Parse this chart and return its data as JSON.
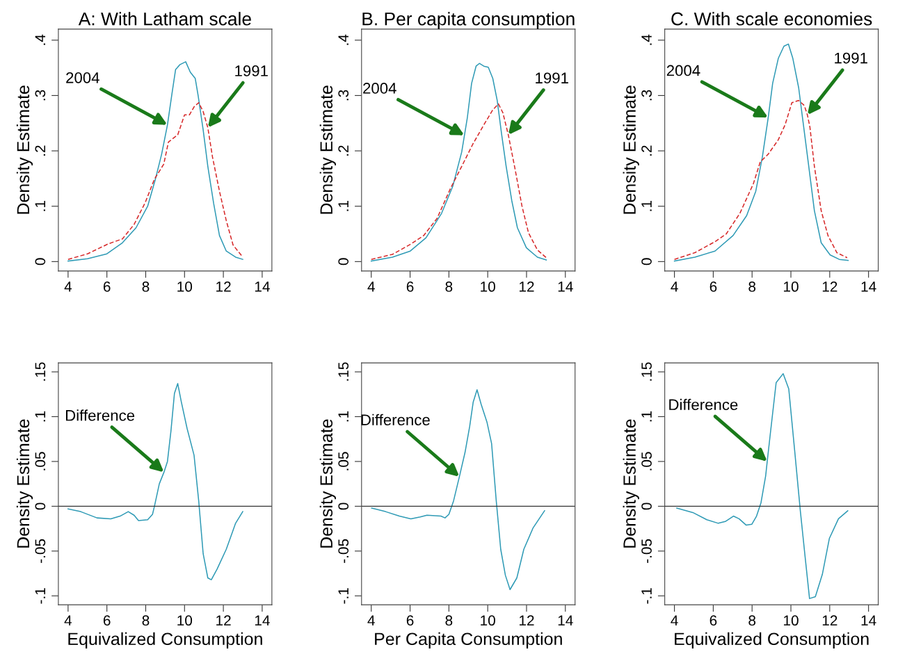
{
  "chart_data": [
    {
      "type": "line",
      "title": "A: With Latham scale",
      "ylabel": "Density Estimate",
      "xlim": [
        3.5,
        14.5
      ],
      "xticks": [
        4,
        6,
        8,
        10,
        12,
        14
      ],
      "ylim": [
        -0.017,
        0.42
      ],
      "yticks": [
        0,
        {
          "value": 0.1,
          "label": ".1"
        },
        {
          "value": 0.2,
          "label": ".2"
        },
        {
          "value": 0.3,
          "label": ".3"
        },
        {
          "value": 0.4,
          "label": ".4"
        }
      ],
      "grid": false,
      "legend": false,
      "series": [
        {
          "color": "#2e9ab5",
          "line_style": "solid",
          "x": [
            4,
            5.0,
            6.0,
            6.8,
            7.5,
            8.1,
            8.5,
            8.82,
            9.12,
            9.36,
            9.54,
            9.77,
            10.06,
            10.3,
            10.55,
            10.7,
            10.96,
            11.2,
            11.5,
            11.8,
            12.15,
            12.63,
            13.0
          ],
          "values": [
            0.001,
            0.005,
            0.014,
            0.034,
            0.061,
            0.1,
            0.149,
            0.194,
            0.247,
            0.305,
            0.347,
            0.356,
            0.361,
            0.342,
            0.331,
            0.3,
            0.238,
            0.172,
            0.105,
            0.047,
            0.019,
            0.008,
            0.004
          ]
        },
        {
          "color": "#d62728",
          "line_style": "dashed",
          "x": [
            4,
            5,
            6.07,
            6.8,
            7.4,
            7.98,
            8.45,
            8.93,
            9.17,
            9.65,
            10.0,
            10.25,
            10.5,
            10.73,
            10.96,
            11.2,
            11.44,
            11.8,
            12.15,
            12.5,
            13.0
          ],
          "values": [
            0.004,
            0.014,
            0.032,
            0.041,
            0.067,
            0.107,
            0.149,
            0.176,
            0.216,
            0.229,
            0.265,
            0.265,
            0.28,
            0.287,
            0.271,
            0.242,
            0.189,
            0.127,
            0.074,
            0.03,
            0.008
          ]
        }
      ],
      "annotations": [
        {
          "text": "2004",
          "x": 9.12,
          "y": 0.247
        },
        {
          "text": "1991",
          "x": 11.2,
          "y": 0.242
        }
      ]
    },
    {
      "type": "line",
      "title": "B. Per capita consumption",
      "ylabel": "Density Estimate",
      "xlim": [
        3.5,
        14.5
      ],
      "xticks": [
        4,
        6,
        8,
        10,
        12,
        14
      ],
      "ylim": [
        -0.017,
        0.42
      ],
      "yticks": [
        0,
        {
          "value": 0.1,
          "label": ".1"
        },
        {
          "value": 0.2,
          "label": ".2"
        },
        {
          "value": 0.3,
          "label": ".3"
        },
        {
          "value": 0.4,
          "label": ".4"
        }
      ],
      "grid": false,
      "legend": false,
      "series": [
        {
          "color": "#2e9ab5",
          "line_style": "solid",
          "x": [
            4,
            5.09,
            6.01,
            6.82,
            7.62,
            8.2,
            8.66,
            8.8,
            8.95,
            9.17,
            9.4,
            9.57,
            9.8,
            10.03,
            10.26,
            10.49,
            10.72,
            10.95,
            11.24,
            11.53,
            11.99,
            12.56,
            13.02
          ],
          "values": [
            0.001,
            0.008,
            0.019,
            0.043,
            0.087,
            0.136,
            0.198,
            0.228,
            0.26,
            0.322,
            0.353,
            0.358,
            0.353,
            0.351,
            0.331,
            0.291,
            0.229,
            0.172,
            0.11,
            0.061,
            0.025,
            0.008,
            0.003
          ]
        },
        {
          "color": "#d62728",
          "line_style": "dashed",
          "x": [
            4,
            5.09,
            6.01,
            6.7,
            7.39,
            8.08,
            8.66,
            9.23,
            9.8,
            10.26,
            10.55,
            10.78,
            11.06,
            11.41,
            11.76,
            12.1,
            12.56,
            13.02
          ],
          "values": [
            0.004,
            0.013,
            0.031,
            0.047,
            0.078,
            0.132,
            0.172,
            0.212,
            0.247,
            0.274,
            0.285,
            0.269,
            0.229,
            0.167,
            0.101,
            0.052,
            0.021,
            0.007
          ]
        }
      ],
      "annotations": [
        {
          "text": "2004",
          "x": 8.8,
          "y": 0.228
        },
        {
          "text": "1991",
          "x": 11.06,
          "y": 0.229
        }
      ]
    },
    {
      "type": "line",
      "title": "C. With scale economies",
      "ylabel": "Density Estimate",
      "xlim": [
        3.5,
        14.5
      ],
      "xticks": [
        4,
        6,
        8,
        10,
        12,
        14
      ],
      "ylim": [
        -0.017,
        0.42
      ],
      "yticks": [
        0,
        {
          "value": 0.1,
          "label": ".1"
        },
        {
          "value": 0.2,
          "label": ".2"
        },
        {
          "value": 0.3,
          "label": ".3"
        },
        {
          "value": 0.4,
          "label": ".4"
        }
      ],
      "grid": false,
      "legend": false,
      "series": [
        {
          "color": "#2e9ab5",
          "line_style": "solid",
          "x": [
            4,
            5.05,
            6.09,
            7.02,
            7.72,
            8.19,
            8.53,
            8.83,
            9.06,
            9.35,
            9.64,
            9.87,
            10.1,
            10.4,
            10.63,
            10.92,
            11.21,
            11.56,
            12.02,
            12.49,
            12.95
          ],
          "values": [
            0.001,
            0.008,
            0.019,
            0.047,
            0.083,
            0.127,
            0.189,
            0.26,
            0.322,
            0.367,
            0.389,
            0.393,
            0.367,
            0.314,
            0.251,
            0.172,
            0.092,
            0.034,
            0.012,
            0.004,
            0.002
          ]
        },
        {
          "color": "#d62728",
          "line_style": "dashed",
          "x": [
            4,
            5.05,
            6.09,
            6.67,
            7.37,
            8.07,
            8.42,
            8.83,
            9.35,
            9.7,
            10.05,
            10.4,
            10.69,
            10.85,
            10.98,
            11.21,
            11.56,
            11.91,
            12.37,
            12.9
          ],
          "values": [
            0.004,
            0.016,
            0.036,
            0.05,
            0.087,
            0.141,
            0.18,
            0.194,
            0.22,
            0.247,
            0.287,
            0.291,
            0.282,
            0.265,
            0.243,
            0.172,
            0.092,
            0.047,
            0.016,
            0.007
          ]
        }
      ],
      "annotations": [
        {
          "text": "2004",
          "x": 8.83,
          "y": 0.26
        },
        {
          "text": "1991",
          "x": 10.85,
          "y": 0.265
        }
      ]
    },
    {
      "type": "line",
      "xlabel": "Equivalized Consumption",
      "ylabel": "Density Estimate",
      "xlim": [
        3.5,
        14.5
      ],
      "xticks": [
        4,
        6,
        8,
        10,
        12,
        14
      ],
      "ylim": [
        -0.11,
        0.16
      ],
      "yticks": [
        {
          "value": -0.1,
          "label": "-.1"
        },
        {
          "value": -0.05,
          "label": "-.05"
        },
        0,
        {
          "value": 0.05,
          "label": ".05"
        },
        {
          "value": 0.1,
          "label": ".1"
        },
        {
          "value": 0.15,
          "label": ".15"
        }
      ],
      "grid": false,
      "legend": false,
      "ref_lines": [
        {
          "axis": "y",
          "value": 0,
          "color": "#333333"
        }
      ],
      "series": [
        {
          "color": "#2e9ab5",
          "line_style": "solid",
          "x": [
            4,
            4.65,
            5.49,
            6.2,
            6.68,
            7.1,
            7.4,
            7.63,
            8.1,
            8.35,
            8.46,
            8.7,
            8.94,
            9.12,
            9.3,
            9.48,
            9.65,
            9.83,
            10.13,
            10.49,
            10.73,
            10.96,
            11.2,
            11.38,
            11.68,
            12.15,
            12.63,
            13.0
          ],
          "values": [
            -0.003,
            -0.006,
            -0.013,
            -0.014,
            -0.011,
            -0.006,
            -0.01,
            -0.016,
            -0.015,
            -0.009,
            0.001,
            0.025,
            0.038,
            0.05,
            0.084,
            0.126,
            0.137,
            0.117,
            0.087,
            0.057,
            0.006,
            -0.053,
            -0.08,
            -0.082,
            -0.07,
            -0.048,
            -0.019,
            -0.006
          ]
        }
      ],
      "annotations": [
        {
          "text": "Difference",
          "x": 8.94,
          "y": 0.038
        }
      ]
    },
    {
      "type": "line",
      "xlabel": "Per Capita Consumption",
      "ylabel": "Density Estimate",
      "xlim": [
        3.5,
        14.5
      ],
      "xticks": [
        4,
        6,
        8,
        10,
        12,
        14
      ],
      "ylim": [
        -0.11,
        0.16
      ],
      "yticks": [
        {
          "value": -0.1,
          "label": "-.1"
        },
        {
          "value": -0.05,
          "label": "-.05"
        },
        0,
        {
          "value": 0.05,
          "label": ".05"
        },
        {
          "value": 0.1,
          "label": ".1"
        },
        {
          "value": 0.15,
          "label": ".15"
        }
      ],
      "grid": false,
      "legend": false,
      "ref_lines": [
        {
          "axis": "y",
          "value": 0,
          "color": "#333333"
        }
      ],
      "series": [
        {
          "color": "#2e9ab5",
          "line_style": "solid",
          "x": [
            4.02,
            4.74,
            5.45,
            6.04,
            6.52,
            6.87,
            7.59,
            7.8,
            8.0,
            8.24,
            8.54,
            8.83,
            9.07,
            9.25,
            9.45,
            9.66,
            9.96,
            10.2,
            10.44,
            10.67,
            10.91,
            11.15,
            11.5,
            11.86,
            12.34,
            12.93
          ],
          "values": [
            -0.002,
            -0.006,
            -0.011,
            -0.014,
            -0.012,
            -0.01,
            -0.011,
            -0.013,
            -0.009,
            0.006,
            0.033,
            0.06,
            0.089,
            0.116,
            0.13,
            0.114,
            0.094,
            0.07,
            0.006,
            -0.048,
            -0.077,
            -0.093,
            -0.08,
            -0.048,
            -0.024,
            -0.005
          ]
        }
      ],
      "annotations": [
        {
          "text": "Difference",
          "x": 8.54,
          "y": 0.033
        }
      ]
    },
    {
      "type": "line",
      "xlabel": "Equivalized Consumption",
      "ylabel": "Density Estimate",
      "xlim": [
        3.5,
        14.5
      ],
      "xticks": [
        4,
        6,
        8,
        10,
        12,
        14
      ],
      "ylim": [
        -0.11,
        0.16
      ],
      "yticks": [
        {
          "value": -0.1,
          "label": "-.1"
        },
        {
          "value": -0.05,
          "label": "-.05"
        },
        0,
        {
          "value": 0.05,
          "label": ".05"
        },
        {
          "value": 0.1,
          "label": ".1"
        },
        {
          "value": 0.15,
          "label": ".15"
        }
      ],
      "grid": false,
      "legend": false,
      "ref_lines": [
        {
          "axis": "y",
          "value": 0,
          "color": "#333333"
        }
      ],
      "series": [
        {
          "color": "#2e9ab5",
          "line_style": "solid",
          "x": [
            4.12,
            4.95,
            5.67,
            6.26,
            6.62,
            7.04,
            7.33,
            7.69,
            7.99,
            8.23,
            8.46,
            8.7,
            8.78,
            8.94,
            9.24,
            9.6,
            9.89,
            10.19,
            10.49,
            10.73,
            10.96,
            11.26,
            11.62,
            11.98,
            12.45,
            12.93
          ],
          "values": [
            -0.002,
            -0.007,
            -0.015,
            -0.019,
            -0.017,
            -0.011,
            -0.014,
            -0.021,
            -0.02,
            -0.011,
            0.004,
            0.034,
            0.05,
            0.081,
            0.138,
            0.148,
            0.131,
            0.063,
            -0.006,
            -0.056,
            -0.103,
            -0.101,
            -0.076,
            -0.036,
            -0.014,
            -0.005
          ]
        }
      ],
      "annotations": [
        {
          "text": "Difference",
          "x": 8.78,
          "y": 0.05
        }
      ]
    }
  ]
}
